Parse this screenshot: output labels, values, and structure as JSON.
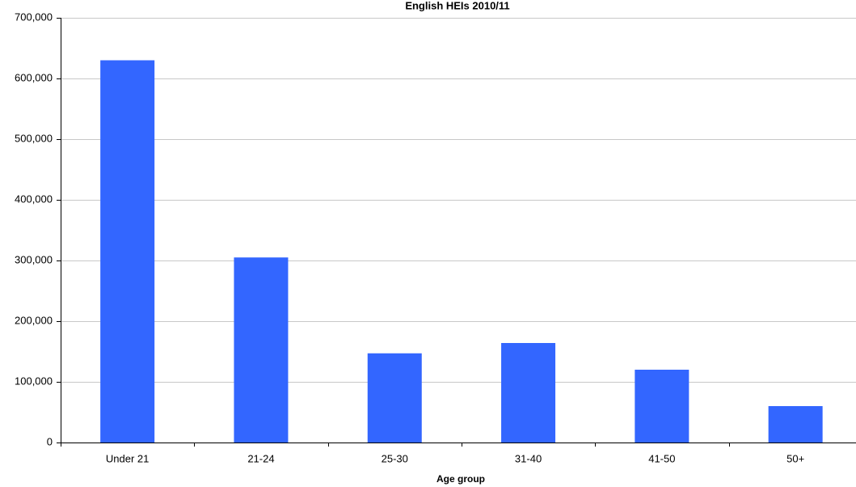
{
  "chart_data": {
    "type": "bar",
    "title": "English HEIs 2010/11",
    "xlabel": "Age group",
    "ylabel": "",
    "categories": [
      "Under 21",
      "21-24",
      "25-30",
      "31-40",
      "41-50",
      "50+"
    ],
    "values": [
      630000,
      305000,
      147000,
      164000,
      120000,
      60000
    ],
    "ylim": [
      0,
      700000
    ],
    "yticks": [
      0,
      100000,
      200000,
      300000,
      400000,
      500000,
      600000,
      700000
    ],
    "ytick_labels": [
      "0",
      "100,000",
      "200,000",
      "300,000",
      "400,000",
      "500,000",
      "600,000",
      "700,000"
    ],
    "grid": true,
    "legend": "none",
    "bar_color": "#3366FF",
    "grid_color": "#C8C8C8",
    "axis_color": "#000000"
  }
}
